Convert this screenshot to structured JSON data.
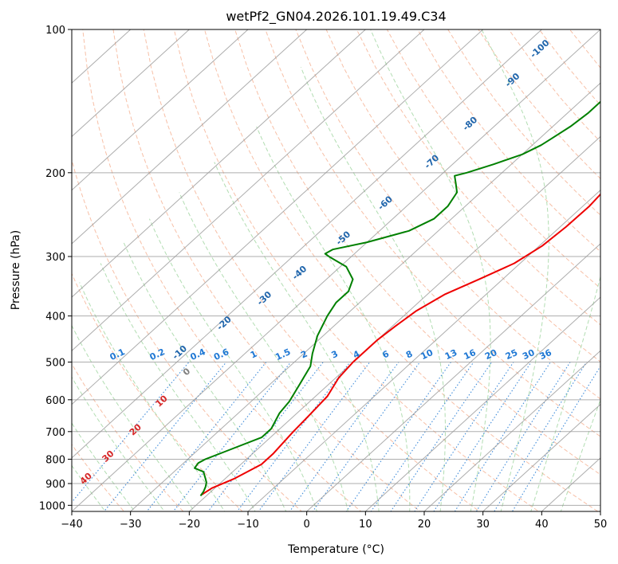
{
  "chart_data": {
    "type": "skew-t",
    "title": "wetPf2_GN04.2026.101.19.49.C34",
    "xlabel": "Temperature (°C)",
    "ylabel": "Pressure (hPa)",
    "xlim": [
      -40,
      50
    ],
    "ylim_hpa": [
      1030,
      100
    ],
    "x_ticks": [
      "−40",
      "−30",
      "−20",
      "−10",
      "0",
      "10",
      "20",
      "30",
      "40",
      "50"
    ],
    "x_tick_values": [
      -40,
      -30,
      -20,
      -10,
      0,
      10,
      20,
      30,
      40,
      50
    ],
    "y_ticks": [
      "100",
      "200",
      "300",
      "400",
      "500",
      "600",
      "700",
      "800",
      "900",
      "1000"
    ],
    "y_tick_values": [
      100,
      200,
      300,
      400,
      500,
      600,
      700,
      800,
      900,
      1000
    ],
    "grid": true,
    "colors": {
      "temperature": "#ee0000",
      "dewpoint": "#008000",
      "isotherm": "#999999",
      "dry_adiabat": "#f4a582",
      "moist_adiabat": "#9fd49f",
      "mixing_ratio": "#1f78d4",
      "dry_adiabat_label": "#2166ac",
      "moist_adiabat_label": "#d62728"
    },
    "temperature_profile": [
      {
        "p": 950,
        "t": -21.0
      },
      {
        "p": 920,
        "t": -20.5
      },
      {
        "p": 880,
        "t": -18.5
      },
      {
        "p": 820,
        "t": -16.5
      },
      {
        "p": 780,
        "t": -16.5
      },
      {
        "p": 700,
        "t": -17.2
      },
      {
        "p": 650,
        "t": -17.5
      },
      {
        "p": 590,
        "t": -18.0
      },
      {
        "p": 540,
        "t": -19.5
      },
      {
        "p": 500,
        "t": -20.0
      },
      {
        "p": 450,
        "t": -20.0
      },
      {
        "p": 420,
        "t": -19.5
      },
      {
        "p": 390,
        "t": -18.8
      },
      {
        "p": 360,
        "t": -17.0
      },
      {
        "p": 335,
        "t": -14.0
      },
      {
        "p": 310,
        "t": -11.0
      },
      {
        "p": 285,
        "t": -9.5
      },
      {
        "p": 260,
        "t": -9.0
      },
      {
        "p": 235,
        "t": -8.9
      },
      {
        "p": 215,
        "t": -9.4
      },
      {
        "p": 195,
        "t": -10.5
      },
      {
        "p": 180,
        "t": -12.0
      },
      {
        "p": 165,
        "t": -13.7
      },
      {
        "p": 150,
        "t": -15.0
      },
      {
        "p": 135,
        "t": -17.0
      },
      {
        "p": 120,
        "t": -19.3
      },
      {
        "p": 110,
        "t": -20.8
      },
      {
        "p": 100,
        "t": -22.5
      }
    ],
    "dewpoint_profile": [
      {
        "p": 955,
        "t": -21.0
      },
      {
        "p": 935,
        "t": -21.3
      },
      {
        "p": 915,
        "t": -21.8
      },
      {
        "p": 895,
        "t": -22.5
      },
      {
        "p": 880,
        "t": -23.3
      },
      {
        "p": 850,
        "t": -25.0
      },
      {
        "p": 835,
        "t": -27.2
      },
      {
        "p": 815,
        "t": -27.5
      },
      {
        "p": 800,
        "t": -27.0
      },
      {
        "p": 770,
        "t": -25.0
      },
      {
        "p": 720,
        "t": -21.5
      },
      {
        "p": 690,
        "t": -21.5
      },
      {
        "p": 640,
        "t": -23.0
      },
      {
        "p": 605,
        "t": -23.5
      },
      {
        "p": 555,
        "t": -25.0
      },
      {
        "p": 510,
        "t": -26.5
      },
      {
        "p": 480,
        "t": -28.5
      },
      {
        "p": 440,
        "t": -31.0
      },
      {
        "p": 400,
        "t": -33.0
      },
      {
        "p": 375,
        "t": -34.0
      },
      {
        "p": 355,
        "t": -34.0
      },
      {
        "p": 335,
        "t": -35.5
      },
      {
        "p": 315,
        "t": -39.0
      },
      {
        "p": 301,
        "t": -43.5
      },
      {
        "p": 296,
        "t": -45.0
      },
      {
        "p": 290,
        "t": -44.5
      },
      {
        "p": 280,
        "t": -40.0
      },
      {
        "p": 265,
        "t": -35.0
      },
      {
        "p": 250,
        "t": -33.0
      },
      {
        "p": 235,
        "t": -33.0
      },
      {
        "p": 220,
        "t": -34.0
      },
      {
        "p": 210,
        "t": -36.0
      },
      {
        "p": 203,
        "t": -37.5
      },
      {
        "p": 200,
        "t": -36.0
      },
      {
        "p": 192,
        "t": -33.0
      },
      {
        "p": 183,
        "t": -30.0
      },
      {
        "p": 175,
        "t": -28.5
      },
      {
        "p": 170,
        "t": -28.0
      },
      {
        "p": 160,
        "t": -27.0
      },
      {
        "p": 150,
        "t": -26.5
      },
      {
        "p": 140,
        "t": -26.5
      },
      {
        "p": 130,
        "t": -27.0
      },
      {
        "p": 120,
        "t": -28.5
      },
      {
        "p": 110,
        "t": -30.5
      },
      {
        "p": 100,
        "t": -33.0
      }
    ],
    "dry_adiabat_labels": [
      {
        "text": "-100",
        "p": 110,
        "t": -46.6
      },
      {
        "text": "-90",
        "p": 128,
        "t": -45.4
      },
      {
        "text": "-80",
        "p": 158,
        "t": -44.5
      },
      {
        "text": "-70",
        "p": 190,
        "t": -43.9
      },
      {
        "text": "-60",
        "p": 232,
        "t": -44.1
      },
      {
        "text": "-50",
        "p": 275,
        "t": -44.7
      },
      {
        "text": "-40",
        "p": 325,
        "t": -45.7
      },
      {
        "text": "-30",
        "p": 368,
        "t": -46.9
      },
      {
        "text": "-20",
        "p": 415,
        "t": -49.1
      },
      {
        "text": "-10",
        "p": 478,
        "t": -51.2
      }
    ],
    "moist_adiabat_labels": [
      {
        "text": "0",
        "p": 525,
        "t": -46.4
      },
      {
        "text": "10",
        "p": 605,
        "t": -45.2
      },
      {
        "text": "20",
        "p": 695,
        "t": -44.3
      },
      {
        "text": "30",
        "p": 790,
        "t": -44.0
      },
      {
        "text": "40",
        "p": 880,
        "t": -43.6
      }
    ],
    "mixing_ratio_labels": [
      "0.1",
      "0.2",
      "0.4",
      "0.6",
      "1",
      "1.5",
      "2",
      "3",
      "4",
      "6",
      "8",
      "10",
      "13",
      "16",
      "20",
      "25",
      "30",
      "36"
    ],
    "mixing_ratio_label_temps": [
      -60.1,
      -53.3,
      -46.4,
      -42.4,
      -36.9,
      -31.9,
      -28.3,
      -23.1,
      -19.4,
      -14.4,
      -10.4,
      -7.4,
      -3.3,
      -0.1,
      3.5,
      7.0,
      9.9,
      12.8
    ]
  }
}
